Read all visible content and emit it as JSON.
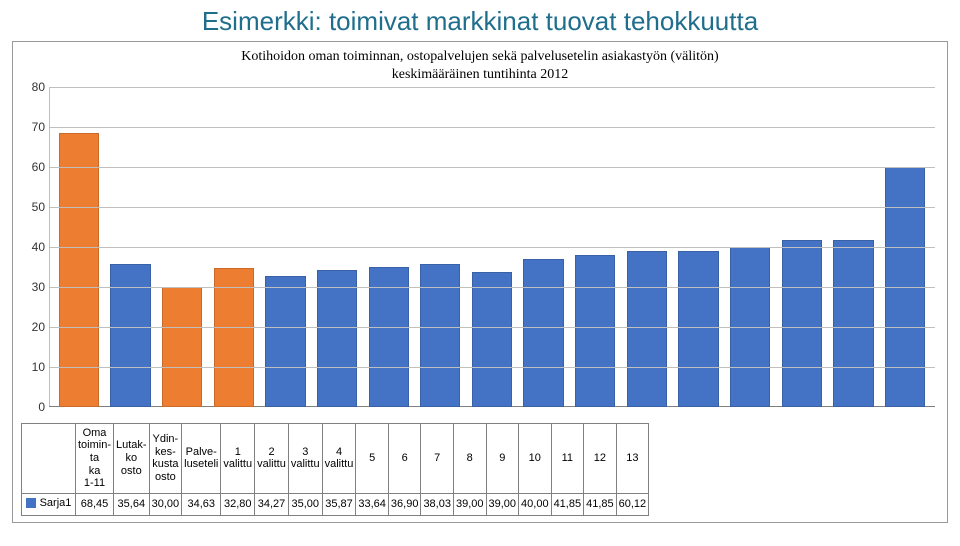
{
  "title": "Esimerkki: toimivat markkinat tuovat tehokkuutta",
  "subtitle_line1": "Kotihoidon oman toiminnan, ostopalvelujen sekä palvelusetelin asiakastyön (välitön)",
  "subtitle_line2": "keskimääräinen tuntihinta 2012",
  "chart": {
    "type": "bar",
    "ylim": [
      0,
      80
    ],
    "ytick_step": 10,
    "grid_color": "#bfbfbf",
    "background_color": "#ffffff",
    "axis_color": "#808080",
    "label_fontsize": 12,
    "categories": [
      "Oma toimin- ta ka 1-11",
      "Lutak- ko osto",
      "Ydin- kes- kusta osto",
      "Palve- luseteli",
      "1 valittu",
      "2 valittu",
      "3 valittu",
      "4 valittu",
      "5",
      "6",
      "7",
      "8",
      "9",
      "10",
      "11",
      "12",
      "13"
    ],
    "values": [
      68.45,
      35.64,
      30.0,
      34.63,
      32.8,
      34.27,
      35.0,
      35.87,
      33.64,
      36.9,
      38.03,
      39.0,
      39.0,
      40.0,
      41.85,
      41.85,
      60.12
    ],
    "values_display": [
      "68,45",
      "35,64",
      "30,00",
      "34,63",
      "32,80",
      "34,27",
      "35,00",
      "35,87",
      "33,64",
      "36,90",
      "38,03",
      "39,00",
      "39,00",
      "40,00",
      "41,85",
      "41,85",
      "60,12"
    ],
    "bar_colors": [
      "#ed7d31",
      "#4472c4",
      "#ed7d31",
      "#ed7d31",
      "#4472c4",
      "#4472c4",
      "#4472c4",
      "#4472c4",
      "#4472c4",
      "#4472c4",
      "#4472c4",
      "#4472c4",
      "#4472c4",
      "#4472c4",
      "#4472c4",
      "#4472c4",
      "#4472c4"
    ],
    "bar_width": 0.78
  },
  "series_name": "Sarja1",
  "series_swatch_color": "#4472c4"
}
